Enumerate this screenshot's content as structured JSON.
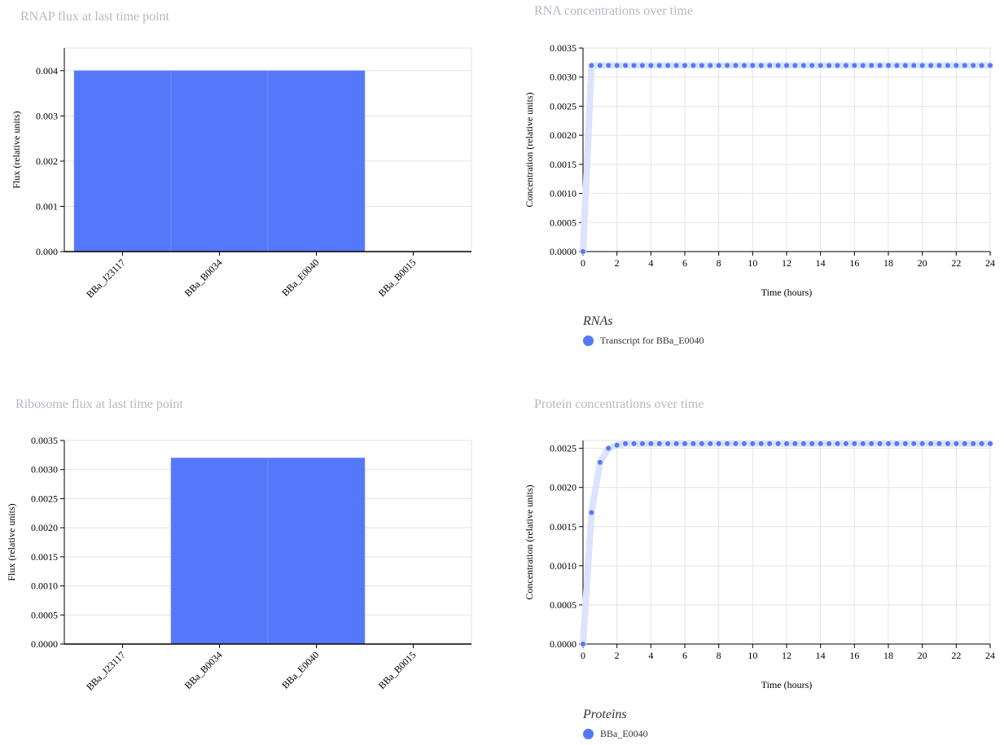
{
  "colors": {
    "bar": "#5578fb",
    "point": "#5578fb",
    "band": "#dbe3fd",
    "grid": "#e3e3e3",
    "axis": "#000000",
    "title": "#b4b8c6"
  },
  "chart_data": [
    {
      "id": "rnap",
      "type": "bar",
      "title": "RNAP flux at last time point",
      "ylabel": "Flux (relative units)",
      "xlabel": "",
      "categories": [
        "BBa_J23117",
        "BBa_B0034",
        "BBa_E0040",
        "BBa_B0015"
      ],
      "values": [
        0.004,
        0.004,
        0.004,
        0
      ],
      "ylim": [
        0,
        0.0045
      ],
      "yticks": [
        "0.000",
        "0.001",
        "0.002",
        "0.003",
        "0.004"
      ],
      "ytick_values": [
        0,
        0.001,
        0.002,
        0.003,
        0.004
      ],
      "grid": true
    },
    {
      "id": "ribo",
      "type": "bar",
      "title": "Ribosome flux at last time point",
      "ylabel": "Flux (relative units)",
      "xlabel": "",
      "categories": [
        "BBa_J23117",
        "BBa_B0034",
        "BBa_E0040",
        "BBa_B0015"
      ],
      "values": [
        0,
        0.0032,
        0.0032,
        0
      ],
      "ylim": [
        0,
        0.0035
      ],
      "yticks": [
        "0.0000",
        "0.0005",
        "0.0010",
        "0.0015",
        "0.0020",
        "0.0025",
        "0.0030",
        "0.0035"
      ],
      "ytick_values": [
        0,
        0.0005,
        0.001,
        0.0015,
        0.002,
        0.0025,
        0.003,
        0.0035
      ],
      "grid": true
    },
    {
      "id": "rna",
      "type": "scatter",
      "title": "RNA concentrations over time",
      "ylabel": "Concentration (relative units)",
      "xlabel": "Time (hours)",
      "xlim": [
        0,
        24
      ],
      "ylim": [
        0,
        0.0035
      ],
      "xticks": [
        "0",
        "2",
        "4",
        "6",
        "8",
        "10",
        "12",
        "14",
        "16",
        "18",
        "20",
        "22",
        "24"
      ],
      "xtick_values": [
        0,
        2,
        4,
        6,
        8,
        10,
        12,
        14,
        16,
        18,
        20,
        22,
        24
      ],
      "yticks": [
        "0.0000",
        "0.0005",
        "0.0010",
        "0.0015",
        "0.0020",
        "0.0025",
        "0.0030",
        "0.0035"
      ],
      "ytick_values": [
        0,
        0.0005,
        0.001,
        0.0015,
        0.002,
        0.0025,
        0.003,
        0.0035
      ],
      "legend_title": "RNAs",
      "legend_position": "bottom-left",
      "grid": true,
      "series": [
        {
          "name": "Transcript for BBa_E0040",
          "x": [
            0,
            0.5,
            1,
            1.5,
            2,
            2.5,
            3,
            3.5,
            4,
            4.5,
            5,
            5.5,
            6,
            6.5,
            7,
            7.5,
            8,
            8.5,
            9,
            9.5,
            10,
            10.5,
            11,
            11.5,
            12,
            12.5,
            13,
            13.5,
            14,
            14.5,
            15,
            15.5,
            16,
            16.5,
            17,
            17.5,
            18,
            18.5,
            19,
            19.5,
            20,
            20.5,
            21,
            21.5,
            22,
            22.5,
            23,
            23.5,
            24
          ],
          "y": [
            0,
            0.0032,
            0.0032,
            0.0032,
            0.0032,
            0.0032,
            0.0032,
            0.0032,
            0.0032,
            0.0032,
            0.0032,
            0.0032,
            0.0032,
            0.0032,
            0.0032,
            0.0032,
            0.0032,
            0.0032,
            0.0032,
            0.0032,
            0.0032,
            0.0032,
            0.0032,
            0.0032,
            0.0032,
            0.0032,
            0.0032,
            0.0032,
            0.0032,
            0.0032,
            0.0032,
            0.0032,
            0.0032,
            0.0032,
            0.0032,
            0.0032,
            0.0032,
            0.0032,
            0.0032,
            0.0032,
            0.0032,
            0.0032,
            0.0032,
            0.0032,
            0.0032,
            0.0032,
            0.0032,
            0.0032,
            0.0032
          ]
        }
      ]
    },
    {
      "id": "protein",
      "type": "scatter",
      "title": "Protein concentrations over time",
      "ylabel": "Concentration (relative units)",
      "xlabel": "Time (hours)",
      "xlim": [
        0,
        24
      ],
      "ylim": [
        0,
        0.0026
      ],
      "xticks": [
        "0",
        "2",
        "4",
        "6",
        "8",
        "10",
        "12",
        "14",
        "16",
        "18",
        "20",
        "22",
        "24"
      ],
      "xtick_values": [
        0,
        2,
        4,
        6,
        8,
        10,
        12,
        14,
        16,
        18,
        20,
        22,
        24
      ],
      "yticks": [
        "0.0000",
        "0.0005",
        "0.0010",
        "0.0015",
        "0.0020",
        "0.0025"
      ],
      "ytick_values": [
        0,
        0.0005,
        0.001,
        0.0015,
        0.002,
        0.0025
      ],
      "legend_title": "Proteins",
      "legend_position": "bottom-left",
      "grid": true,
      "series": [
        {
          "name": "BBa_E0040",
          "x": [
            0,
            0.5,
            1,
            1.5,
            2,
            2.5,
            3,
            3.5,
            4,
            4.5,
            5,
            5.5,
            6,
            6.5,
            7,
            7.5,
            8,
            8.5,
            9,
            9.5,
            10,
            10.5,
            11,
            11.5,
            12,
            12.5,
            13,
            13.5,
            14,
            14.5,
            15,
            15.5,
            16,
            16.5,
            17,
            17.5,
            18,
            18.5,
            19,
            19.5,
            20,
            20.5,
            21,
            21.5,
            22,
            22.5,
            23,
            23.5,
            24
          ],
          "y": [
            0,
            0.00168,
            0.00232,
            0.0025,
            0.00254,
            0.00256,
            0.00256,
            0.00256,
            0.00256,
            0.00256,
            0.00256,
            0.00256,
            0.00256,
            0.00256,
            0.00256,
            0.00256,
            0.00256,
            0.00256,
            0.00256,
            0.00256,
            0.00256,
            0.00256,
            0.00256,
            0.00256,
            0.00256,
            0.00256,
            0.00256,
            0.00256,
            0.00256,
            0.00256,
            0.00256,
            0.00256,
            0.00256,
            0.00256,
            0.00256,
            0.00256,
            0.00256,
            0.00256,
            0.00256,
            0.00256,
            0.00256,
            0.00256,
            0.00256,
            0.00256,
            0.00256,
            0.00256,
            0.00256,
            0.00256,
            0.00256
          ]
        }
      ]
    }
  ]
}
